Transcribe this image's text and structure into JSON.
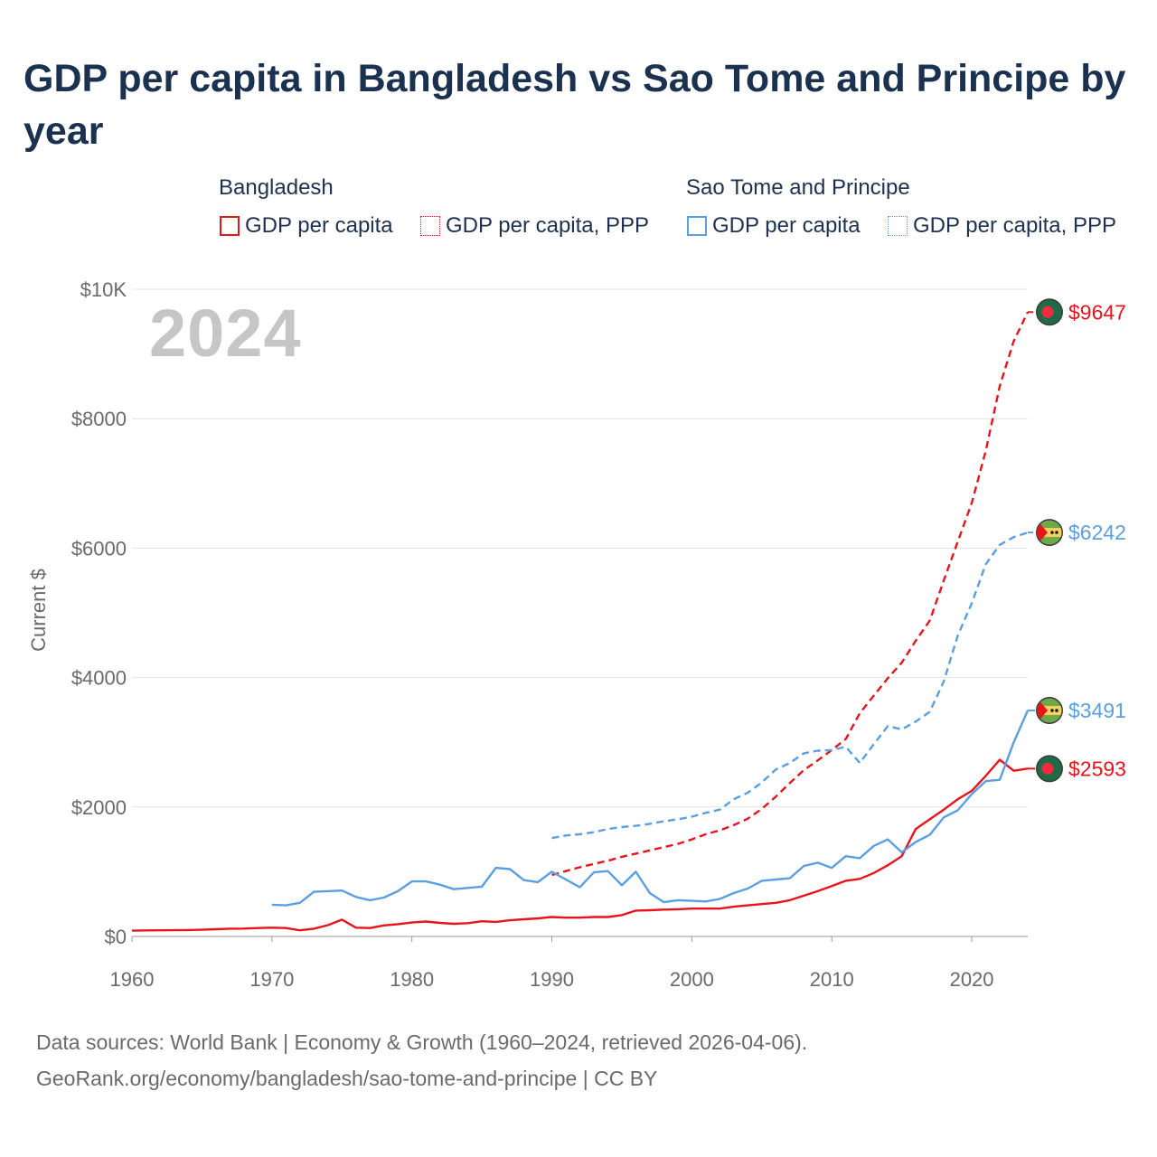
{
  "title": "GDP per capita in Bangladesh vs Sao Tome and Principe by year",
  "year_label": "2024",
  "legend": {
    "groups": [
      {
        "name": "Bangladesh",
        "items": [
          "GDP per capita",
          "GDP per capita, PPP"
        ]
      },
      {
        "name": "Sao Tome and Principe",
        "items": [
          "GDP per capita",
          "GDP per capita, PPP"
        ]
      }
    ]
  },
  "colors": {
    "bangladesh": "#e8141c",
    "sao_tome": "#5b9fe0",
    "grid": "#e2e2e2",
    "axis": "#6a6a6a"
  },
  "source": {
    "line1": "Data sources: World Bank | Economy & Growth (1960–2024, retrieved 2026-04-06).",
    "line2": "GeoRank.org/economy/bangladesh/sao-tome-and-principe | CC BY"
  },
  "chart_data": {
    "type": "line",
    "title": "GDP per capita in Bangladesh vs Sao Tome and Principe by year",
    "xlabel": "",
    "ylabel": "Current $",
    "xlim": [
      1960,
      2024
    ],
    "ylim": [
      0,
      10000
    ],
    "x_ticks": [
      1960,
      1970,
      1980,
      1990,
      2000,
      2010,
      2020
    ],
    "y_ticks": [
      0,
      2000,
      4000,
      6000,
      8000,
      10000
    ],
    "y_tick_labels": [
      "$0",
      "$2000",
      "$4000",
      "$6000",
      "$8000",
      "$10K"
    ],
    "grid": true,
    "legend_position": "top",
    "series": [
      {
        "name": "Bangladesh GDP per capita",
        "country": "Bangladesh",
        "style": "solid",
        "end_label": "$2593",
        "x": [
          1960,
          1961,
          1962,
          1963,
          1964,
          1965,
          1966,
          1967,
          1968,
          1969,
          1970,
          1971,
          1972,
          1973,
          1974,
          1975,
          1976,
          1977,
          1978,
          1979,
          1980,
          1981,
          1982,
          1983,
          1984,
          1985,
          1986,
          1987,
          1988,
          1989,
          1990,
          1991,
          1992,
          1993,
          1994,
          1995,
          1996,
          1997,
          1998,
          1999,
          2000,
          2001,
          2002,
          2003,
          2004,
          2005,
          2006,
          2007,
          2008,
          2009,
          2010,
          2011,
          2012,
          2013,
          2014,
          2015,
          2016,
          2017,
          2018,
          2019,
          2020,
          2021,
          2022,
          2023,
          2024
        ],
        "values": [
          89,
          93,
          95,
          97,
          99,
          104,
          112,
          120,
          122,
          130,
          135,
          130,
          95,
          120,
          175,
          260,
          135,
          130,
          170,
          190,
          215,
          230,
          210,
          195,
          205,
          235,
          225,
          250,
          265,
          280,
          300,
          290,
          290,
          300,
          300,
          330,
          400,
          405,
          415,
          420,
          430,
          430,
          430,
          460,
          480,
          500,
          520,
          560,
          630,
          700,
          780,
          860,
          890,
          980,
          1100,
          1240,
          1660,
          1810,
          1960,
          2120,
          2250,
          2480,
          2730,
          2560,
          2593
        ]
      },
      {
        "name": "Bangladesh GDP per capita, PPP",
        "country": "Bangladesh",
        "style": "dashed",
        "end_label": "$9647",
        "x": [
          1990,
          1991,
          1992,
          1993,
          1994,
          1995,
          1996,
          1997,
          1998,
          1999,
          2000,
          2001,
          2002,
          2003,
          2004,
          2005,
          2006,
          2007,
          2008,
          2009,
          2010,
          2011,
          2012,
          2013,
          2014,
          2015,
          2016,
          2017,
          2018,
          2019,
          2020,
          2021,
          2022,
          2023,
          2024
        ],
        "values": [
          950,
          1010,
          1070,
          1120,
          1170,
          1230,
          1280,
          1330,
          1380,
          1430,
          1500,
          1580,
          1640,
          1720,
          1820,
          1970,
          2160,
          2370,
          2570,
          2720,
          2880,
          3050,
          3450,
          3720,
          3990,
          4230,
          4570,
          4880,
          5500,
          6100,
          6700,
          7500,
          8500,
          9200,
          9647
        ]
      },
      {
        "name": "Sao Tome and Principe GDP per capita",
        "country": "Sao Tome and Principe",
        "style": "solid",
        "end_label": "$3491",
        "x": [
          1970,
          1971,
          1972,
          1973,
          1974,
          1975,
          1976,
          1977,
          1978,
          1979,
          1980,
          1981,
          1982,
          1983,
          1984,
          1985,
          1986,
          1987,
          1988,
          1989,
          1990,
          1991,
          1992,
          1993,
          1994,
          1995,
          1996,
          1997,
          1998,
          1999,
          2000,
          2001,
          2002,
          2003,
          2004,
          2005,
          2006,
          2007,
          2008,
          2009,
          2010,
          2011,
          2012,
          2013,
          2014,
          2015,
          2016,
          2017,
          2018,
          2019,
          2020,
          2021,
          2022,
          2023,
          2024
        ],
        "values": [
          490,
          480,
          520,
          690,
          700,
          710,
          610,
          560,
          600,
          700,
          850,
          850,
          800,
          730,
          750,
          770,
          1060,
          1040,
          870,
          840,
          1000,
          880,
          760,
          990,
          1010,
          790,
          1000,
          670,
          530,
          560,
          550,
          540,
          580,
          670,
          740,
          860,
          880,
          900,
          1090,
          1140,
          1060,
          1240,
          1210,
          1400,
          1500,
          1300,
          1460,
          1570,
          1840,
          1950,
          2200,
          2400,
          2420,
          3000,
          3491
        ]
      },
      {
        "name": "Sao Tome and Principe GDP per capita, PPP",
        "country": "Sao Tome and Principe",
        "style": "dashed",
        "end_label": "$6242",
        "x": [
          1990,
          1991,
          1992,
          1993,
          1994,
          1995,
          1996,
          1997,
          1998,
          1999,
          2000,
          2001,
          2002,
          2003,
          2004,
          2005,
          2006,
          2007,
          2008,
          2009,
          2010,
          2011,
          2012,
          2013,
          2014,
          2015,
          2016,
          2017,
          2018,
          2019,
          2020,
          2021,
          2022,
          2023,
          2024
        ],
        "values": [
          1520,
          1560,
          1580,
          1610,
          1660,
          1690,
          1710,
          1740,
          1780,
          1810,
          1850,
          1910,
          1960,
          2120,
          2220,
          2380,
          2580,
          2680,
          2830,
          2870,
          2880,
          2930,
          2680,
          2970,
          3250,
          3200,
          3320,
          3470,
          3940,
          4650,
          5150,
          5750,
          6050,
          6170,
          6242
        ]
      }
    ]
  }
}
